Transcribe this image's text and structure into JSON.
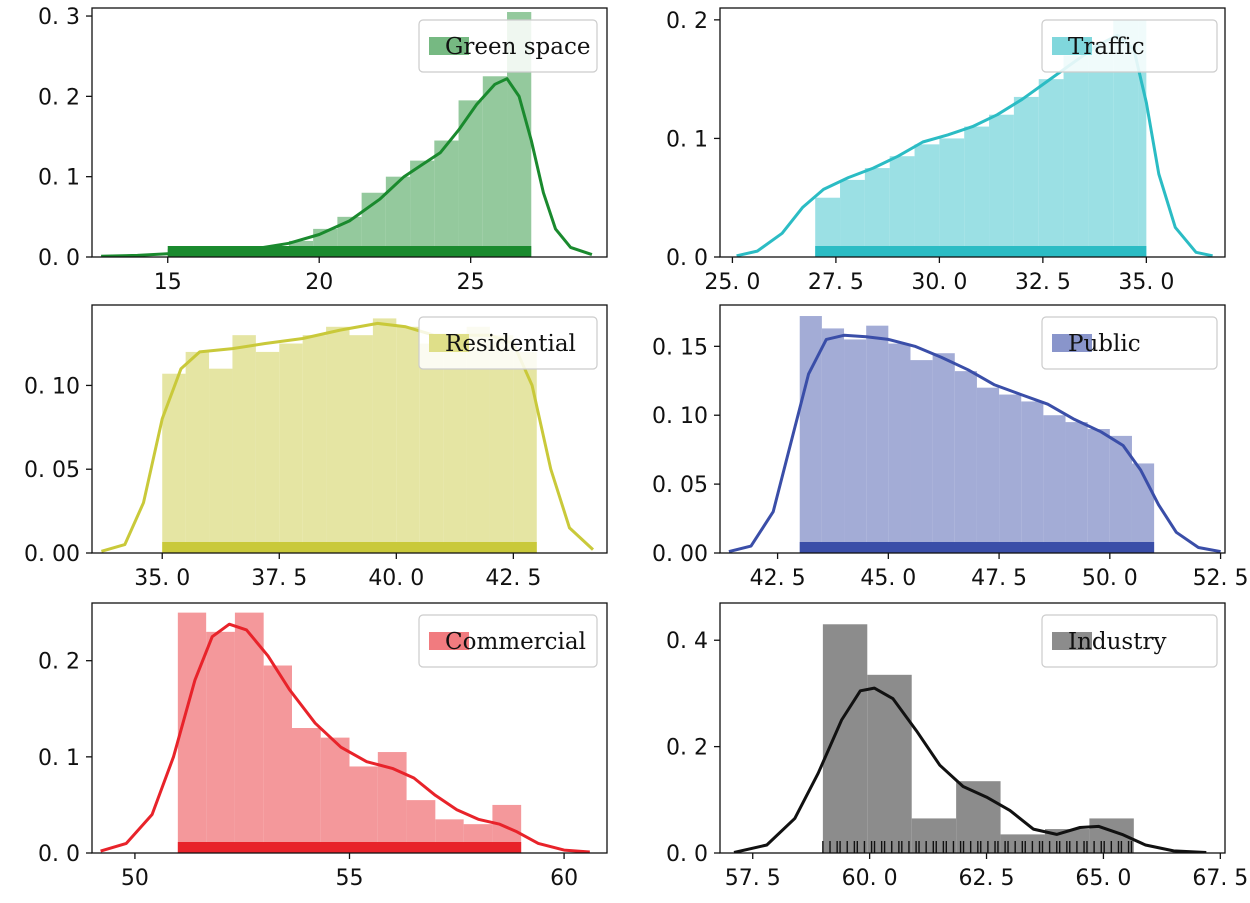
{
  "chart_data": [
    {
      "type": "histogram",
      "series_name": "Green space",
      "color": "#1a8a2e",
      "xlim": [
        12.5,
        29.5
      ],
      "ylim": [
        0,
        0.31
      ],
      "xticks": [
        15,
        20,
        25
      ],
      "xtick_labels": [
        "15",
        "20",
        "25"
      ],
      "yticks": [
        0.0,
        0.1,
        0.2,
        0.3
      ],
      "ytick_labels": [
        "0. 0",
        "0. 1",
        "0. 2",
        "0. 3"
      ],
      "bins": [
        15.0,
        15.8,
        16.6,
        17.4,
        18.2,
        19.0,
        19.8,
        20.6,
        21.4,
        22.2,
        23.0,
        23.8,
        24.6,
        25.4,
        26.2,
        27.0
      ],
      "values": [
        0.01,
        0.005,
        0.007,
        0.01,
        0.013,
        0.02,
        0.035,
        0.05,
        0.08,
        0.1,
        0.12,
        0.145,
        0.195,
        0.225,
        0.305
      ],
      "kde": [
        [
          12.8,
          0.001
        ],
        [
          14,
          0.002
        ],
        [
          15,
          0.004
        ],
        [
          16,
          0.006
        ],
        [
          17,
          0.008
        ],
        [
          18,
          0.011
        ],
        [
          19,
          0.017
        ],
        [
          20,
          0.028
        ],
        [
          21,
          0.045
        ],
        [
          22,
          0.072
        ],
        [
          22.8,
          0.1
        ],
        [
          23.4,
          0.115
        ],
        [
          24,
          0.13
        ],
        [
          24.6,
          0.158
        ],
        [
          25.2,
          0.19
        ],
        [
          25.8,
          0.215
        ],
        [
          26.2,
          0.222
        ],
        [
          26.6,
          0.2
        ],
        [
          27,
          0.145
        ],
        [
          27.4,
          0.08
        ],
        [
          27.8,
          0.035
        ],
        [
          28.3,
          0.012
        ],
        [
          29,
          0.003
        ]
      ],
      "rug_range": [
        15,
        27
      ],
      "legend": "Green space"
    },
    {
      "type": "histogram",
      "series_name": "Traffic",
      "color": "#2bbcc4",
      "xlim": [
        24.7,
        36.9
      ],
      "ylim": [
        0,
        0.21
      ],
      "xticks": [
        25.0,
        27.5,
        30.0,
        32.5,
        35.0
      ],
      "xtick_labels": [
        "25. 0",
        "27. 5",
        "30. 0",
        "32. 5",
        "35. 0"
      ],
      "yticks": [
        0.0,
        0.1,
        0.2
      ],
      "ytick_labels": [
        "0. 0",
        "0. 1",
        "0. 2"
      ],
      "bins": [
        27.0,
        27.6,
        28.2,
        28.8,
        29.4,
        30.0,
        30.6,
        31.2,
        31.8,
        32.4,
        33.0,
        33.6,
        34.2,
        34.8,
        35.0
      ],
      "values": [
        0.05,
        0.065,
        0.075,
        0.085,
        0.095,
        0.1,
        0.11,
        0.12,
        0.135,
        0.15,
        0.17,
        0.18,
        0.2,
        0.2
      ],
      "kde": [
        [
          25.1,
          0.001
        ],
        [
          25.6,
          0.005
        ],
        [
          26.2,
          0.02
        ],
        [
          26.7,
          0.042
        ],
        [
          27.2,
          0.057
        ],
        [
          27.8,
          0.067
        ],
        [
          28.4,
          0.075
        ],
        [
          29,
          0.085
        ],
        [
          29.6,
          0.097
        ],
        [
          30.2,
          0.103
        ],
        [
          30.8,
          0.11
        ],
        [
          31.4,
          0.12
        ],
        [
          32,
          0.133
        ],
        [
          32.6,
          0.148
        ],
        [
          33.2,
          0.163
        ],
        [
          33.8,
          0.178
        ],
        [
          34.3,
          0.187
        ],
        [
          34.7,
          0.175
        ],
        [
          35,
          0.13
        ],
        [
          35.3,
          0.07
        ],
        [
          35.7,
          0.025
        ],
        [
          36.2,
          0.004
        ],
        [
          36.6,
          0.001
        ]
      ],
      "rug_range": [
        27,
        35
      ],
      "legend": "Traffic"
    },
    {
      "type": "histogram",
      "series_name": "Residential",
      "color": "#c9c93a",
      "xlim": [
        33.5,
        44.5
      ],
      "ylim": [
        0,
        0.148
      ],
      "xticks": [
        35.0,
        37.5,
        40.0,
        42.5
      ],
      "xtick_labels": [
        "35. 0",
        "37. 5",
        "40. 0",
        "42. 5"
      ],
      "yticks": [
        0.0,
        0.05,
        0.1
      ],
      "ytick_labels": [
        "0. 00",
        "0. 05",
        "0. 10"
      ],
      "bins": [
        35.0,
        35.5,
        36.0,
        36.5,
        37.0,
        37.5,
        38.0,
        38.5,
        39.0,
        39.5,
        40.0,
        40.5,
        41.0,
        41.5,
        42.0,
        42.5,
        43.0
      ],
      "values": [
        0.107,
        0.12,
        0.11,
        0.13,
        0.12,
        0.125,
        0.13,
        0.135,
        0.13,
        0.14,
        0.135,
        0.125,
        0.13,
        0.135,
        0.13,
        0.12
      ],
      "kde": [
        [
          33.7,
          0.001
        ],
        [
          34.2,
          0.005
        ],
        [
          34.6,
          0.03
        ],
        [
          35,
          0.08
        ],
        [
          35.4,
          0.11
        ],
        [
          35.8,
          0.12
        ],
        [
          36.5,
          0.122
        ],
        [
          37.2,
          0.125
        ],
        [
          38,
          0.128
        ],
        [
          38.8,
          0.133
        ],
        [
          39.6,
          0.137
        ],
        [
          40.2,
          0.135
        ],
        [
          40.8,
          0.13
        ],
        [
          41.4,
          0.13
        ],
        [
          42,
          0.13
        ],
        [
          42.5,
          0.125
        ],
        [
          42.9,
          0.1
        ],
        [
          43.3,
          0.05
        ],
        [
          43.7,
          0.015
        ],
        [
          44.2,
          0.002
        ]
      ],
      "rug_range": [
        35,
        43
      ],
      "legend": "Residential"
    },
    {
      "type": "histogram",
      "series_name": "Public",
      "color": "#3a4ea8",
      "xlim": [
        41.2,
        52.6
      ],
      "ylim": [
        0,
        0.18
      ],
      "xticks": [
        42.5,
        45.0,
        47.5,
        50.0,
        52.5
      ],
      "xtick_labels": [
        "42. 5",
        "45. 0",
        "47. 5",
        "50. 0",
        "52. 5"
      ],
      "yticks": [
        0.0,
        0.05,
        0.1,
        0.15
      ],
      "ytick_labels": [
        "0. 00",
        "0. 05",
        "0. 10",
        "0. 15"
      ],
      "bins": [
        43.0,
        43.5,
        44.0,
        44.5,
        45.0,
        45.5,
        46.0,
        46.5,
        47.0,
        47.5,
        48.0,
        48.5,
        49.0,
        49.5,
        50.0,
        50.5,
        51.0
      ],
      "values": [
        0.172,
        0.163,
        0.155,
        0.165,
        0.152,
        0.14,
        0.145,
        0.132,
        0.12,
        0.115,
        0.11,
        0.1,
        0.095,
        0.09,
        0.085,
        0.065
      ],
      "kde": [
        [
          41.4,
          0.001
        ],
        [
          41.9,
          0.005
        ],
        [
          42.4,
          0.03
        ],
        [
          42.8,
          0.08
        ],
        [
          43.2,
          0.13
        ],
        [
          43.6,
          0.155
        ],
        [
          44,
          0.158
        ],
        [
          44.5,
          0.157
        ],
        [
          45,
          0.155
        ],
        [
          45.6,
          0.15
        ],
        [
          46.2,
          0.142
        ],
        [
          46.8,
          0.133
        ],
        [
          47.4,
          0.122
        ],
        [
          48,
          0.115
        ],
        [
          48.6,
          0.108
        ],
        [
          49.2,
          0.097
        ],
        [
          49.8,
          0.088
        ],
        [
          50.3,
          0.078
        ],
        [
          50.7,
          0.06
        ],
        [
          51.1,
          0.035
        ],
        [
          51.5,
          0.015
        ],
        [
          52,
          0.004
        ],
        [
          52.5,
          0.001
        ]
      ],
      "rug_range": [
        43,
        51
      ],
      "legend": "Public"
    },
    {
      "type": "histogram",
      "series_name": "Commercial",
      "color": "#e8232a",
      "xlim": [
        49.0,
        61.0
      ],
      "ylim": [
        0,
        0.26
      ],
      "xticks": [
        50,
        55,
        60
      ],
      "xtick_labels": [
        "50",
        "55",
        "60"
      ],
      "yticks": [
        0.0,
        0.1,
        0.2
      ],
      "ytick_labels": [
        "0. 0",
        "0. 1",
        "0. 2"
      ],
      "bins": [
        51.0,
        51.66,
        52.33,
        53.0,
        53.66,
        54.33,
        55.0,
        55.66,
        56.33,
        57.0,
        57.66,
        58.33,
        59.0
      ],
      "values": [
        0.25,
        0.23,
        0.25,
        0.195,
        0.13,
        0.12,
        0.09,
        0.105,
        0.055,
        0.035,
        0.03,
        0.05
      ],
      "kde": [
        [
          49.2,
          0.002
        ],
        [
          49.8,
          0.01
        ],
        [
          50.4,
          0.04
        ],
        [
          50.9,
          0.1
        ],
        [
          51.4,
          0.18
        ],
        [
          51.8,
          0.225
        ],
        [
          52.2,
          0.238
        ],
        [
          52.6,
          0.232
        ],
        [
          53.1,
          0.205
        ],
        [
          53.6,
          0.17
        ],
        [
          54.2,
          0.135
        ],
        [
          54.8,
          0.11
        ],
        [
          55.4,
          0.095
        ],
        [
          56,
          0.088
        ],
        [
          56.5,
          0.078
        ],
        [
          57,
          0.06
        ],
        [
          57.5,
          0.045
        ],
        [
          58,
          0.035
        ],
        [
          58.5,
          0.03
        ],
        [
          58.9,
          0.022
        ],
        [
          59.4,
          0.01
        ],
        [
          60,
          0.003
        ],
        [
          60.6,
          0.001
        ]
      ],
      "rug_range": [
        51,
        59
      ],
      "legend": "Commercial"
    },
    {
      "type": "histogram",
      "series_name": "Industry",
      "color": "#111111",
      "xlim": [
        56.8,
        67.6
      ],
      "ylim": [
        0,
        0.47
      ],
      "xticks": [
        57.5,
        60.0,
        62.5,
        65.0,
        67.5
      ],
      "xtick_labels": [
        "57. 5",
        "60. 0",
        "62. 5",
        "65. 0",
        "67. 5"
      ],
      "yticks": [
        0.0,
        0.2,
        0.4
      ],
      "ytick_labels": [
        "0. 0",
        "0. 2",
        "0. 4"
      ],
      "bins": [
        59.0,
        59.95,
        60.9,
        61.85,
        62.8,
        63.75,
        64.7,
        65.65
      ],
      "values": [
        0.43,
        0.335,
        0.065,
        0.135,
        0.035,
        0.045,
        0.065
      ],
      "kde": [
        [
          57.1,
          0.001
        ],
        [
          57.8,
          0.015
        ],
        [
          58.4,
          0.065
        ],
        [
          58.9,
          0.15
        ],
        [
          59.4,
          0.25
        ],
        [
          59.8,
          0.305
        ],
        [
          60.1,
          0.31
        ],
        [
          60.5,
          0.29
        ],
        [
          61,
          0.23
        ],
        [
          61.5,
          0.165
        ],
        [
          62,
          0.125
        ],
        [
          62.5,
          0.105
        ],
        [
          63,
          0.08
        ],
        [
          63.5,
          0.045
        ],
        [
          64,
          0.035
        ],
        [
          64.5,
          0.048
        ],
        [
          64.9,
          0.05
        ],
        [
          65.4,
          0.035
        ],
        [
          65.9,
          0.015
        ],
        [
          66.5,
          0.004
        ],
        [
          67.2,
          0.001
        ]
      ],
      "rug_range": [
        59,
        65.6
      ],
      "legend": "Industry"
    }
  ]
}
